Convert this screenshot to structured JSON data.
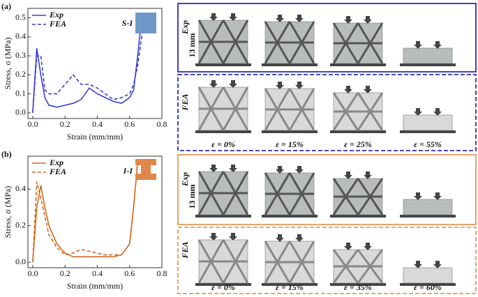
{
  "chart_data": [
    {
      "type": "line",
      "panel": "(a)",
      "xlabel": "Strain (mm/mm)",
      "ylabel": "Stress, σ (MPa)",
      "inset": "S-I",
      "inset_color": "#6f97c6",
      "x": [
        0,
        0.025,
        0.05,
        0.075,
        0.1,
        0.15,
        0.2,
        0.25,
        0.3,
        0.35,
        0.4,
        0.45,
        0.5,
        0.55,
        0.6,
        0.625,
        0.65,
        0.675,
        0.7
      ],
      "series": [
        {
          "name": "Exp",
          "color": "#3b3bd6",
          "dash": false,
          "values": [
            0,
            0.34,
            0.2,
            0.08,
            0.04,
            0.03,
            0.04,
            0.05,
            0.07,
            0.13,
            0.1,
            0.08,
            0.06,
            0.05,
            0.08,
            0.12,
            0.3,
            0.5,
            null
          ]
        },
        {
          "name": "FEA",
          "color": "#3b3bd6",
          "dash": true,
          "values": [
            0,
            0.3,
            0.3,
            0.12,
            0.1,
            0.1,
            0.15,
            0.2,
            0.15,
            0.15,
            0.13,
            0.1,
            0.07,
            0.08,
            0.1,
            0.15,
            0.25,
            0.4,
            0.5
          ]
        }
      ],
      "xlim": [
        -0.03,
        0.8
      ],
      "ylim": [
        -0.03,
        0.55
      ],
      "xticks": [
        {
          "value": 0,
          "label": "0.0"
        },
        0.2,
        0.4,
        0.6,
        0.8
      ],
      "yticks": [
        {
          "value": 0,
          "label": "0.0"
        },
        0.1,
        0.2,
        0.3,
        0.4,
        0.5
      ],
      "legend": "upper left"
    },
    {
      "type": "line",
      "panel": "(b)",
      "xlabel": "Strain (mm/mm)",
      "ylabel": "Stress, σ (MPa)",
      "inset": "I-I",
      "inset_color": "#e0874a",
      "x": [
        0,
        0.025,
        0.05,
        0.075,
        0.1,
        0.15,
        0.2,
        0.25,
        0.3,
        0.35,
        0.4,
        0.45,
        0.5,
        0.55,
        0.6,
        0.625,
        0.65,
        0.675,
        0.7
      ],
      "series": [
        {
          "name": "Exp",
          "color": "#d2691e",
          "dash": false,
          "values": [
            0,
            0.3,
            0.42,
            0.3,
            0.2,
            0.1,
            0.05,
            0.03,
            0.03,
            0.03,
            0.03,
            0.03,
            0.03,
            0.04,
            0.1,
            0.3,
            0.55,
            null,
            null
          ]
        },
        {
          "name": "FEA",
          "color": "#d2691e",
          "dash": true,
          "values": [
            0,
            0.44,
            0.35,
            0.25,
            0.15,
            0.08,
            0.04,
            0.05,
            0.07,
            0.06,
            0.05,
            0.04,
            0.04,
            0.04,
            0.1,
            0.3,
            0.55,
            null,
            null
          ]
        }
      ],
      "xlim": [
        -0.03,
        0.8
      ],
      "ylim": [
        -0.03,
        0.58
      ],
      "xticks": [
        {
          "value": 0,
          "label": "0.0"
        },
        0.2,
        0.4,
        0.6,
        0.8
      ],
      "yticks": [
        {
          "value": 0,
          "label": "0.0"
        },
        0.2,
        0.4
      ],
      "legend": "upper left"
    }
  ],
  "panels": [
    {
      "color": "#2d2db8",
      "exp": "Exp",
      "fea": "FEA",
      "scale": "13 mm",
      "strains": [
        "ε = 0%",
        "ε = 15%",
        "ε = 25%",
        "ε = 55%"
      ]
    },
    {
      "color": "#e09a5e",
      "exp": "Exp",
      "fea": "FEA",
      "scale": "13 mm",
      "strains": [
        "ε = 0%",
        "ε = 15%",
        "ε = 35%",
        "ε = 60%"
      ]
    }
  ]
}
